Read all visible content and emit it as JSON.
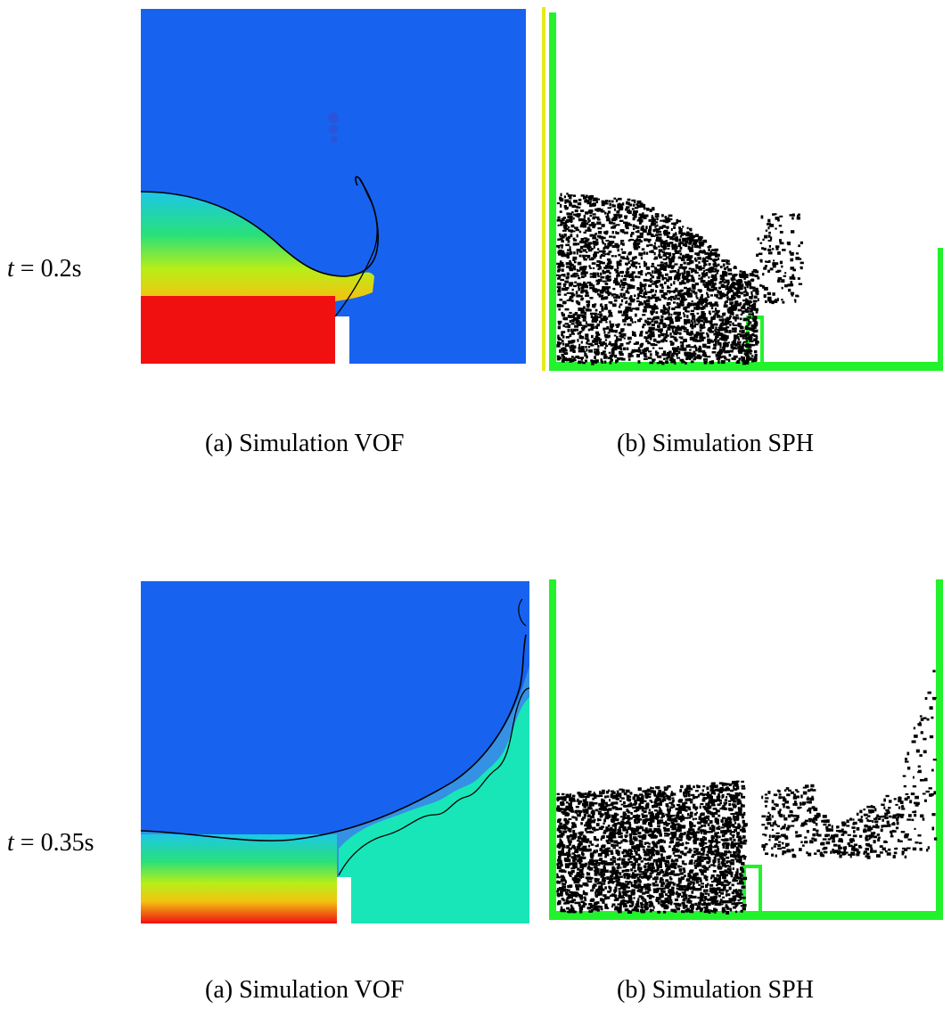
{
  "rows": [
    {
      "time": {
        "var": "t",
        "eq": " = ",
        "value": "0.2s"
      },
      "vof_caption": "(a) Simulation VOF",
      "sph_caption": "(b) Simulation SPH"
    },
    {
      "time": {
        "var": "t",
        "eq": " = ",
        "value": "0.35s"
      },
      "vof_caption": "(a) Simulation VOF",
      "sph_caption": "(b) Simulation SPH"
    }
  ],
  "colors": {
    "air": "#1763f0",
    "water_full": "#f01010",
    "water_mid": "#22d12a",
    "water_low": "#18e6b8",
    "wall": "#22f22b",
    "particle": "#000000"
  }
}
